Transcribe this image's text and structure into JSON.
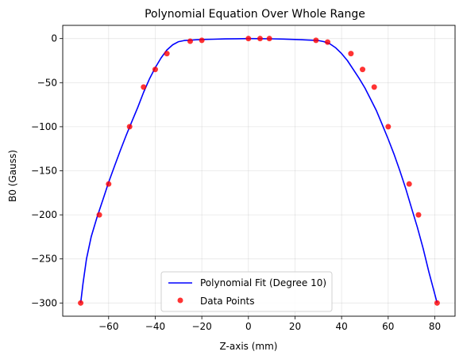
{
  "chart_data": {
    "type": "scatter",
    "title": "Polynomial Equation Over Whole Range",
    "xlabel": "Z-axis (mm)",
    "ylabel": "B0 (Gauss)",
    "xlim": [
      -79.7,
      88.7
    ],
    "ylim": [
      -315,
      15
    ],
    "xticks": [
      -60,
      -40,
      -20,
      0,
      20,
      40,
      60,
      80
    ],
    "yticks": [
      0,
      -50,
      -100,
      -150,
      -200,
      -250,
      -300
    ],
    "xtick_labels": [
      "−60",
      "−40",
      "−20",
      "0",
      "20",
      "40",
      "60",
      "80"
    ],
    "ytick_labels": [
      "0",
      "−50",
      "−100",
      "−150",
      "−200",
      "−250",
      "−300"
    ],
    "grid": true,
    "legend_position": "bottom-center",
    "series": [
      {
        "name": "Polynomial Fit (Degree 10)",
        "kind": "line",
        "color": "#0000ff",
        "x": [
          -72.0,
          -71.0,
          -69.5,
          -67.5,
          -65.0,
          -62.5,
          -60.0,
          -57.5,
          -55.0,
          -52.5,
          -50.0,
          -47.5,
          -45.0,
          -42.5,
          -40.0,
          -37.5,
          -35.0,
          -32.5,
          -30.0,
          -27.5,
          -25.0,
          -22.5,
          -20.0,
          -15.0,
          -10.0,
          -5.0,
          0.0,
          5.0,
          10.0,
          15.0,
          20.0,
          25.0,
          30.0,
          32.5,
          35.0,
          37.5,
          40.0,
          42.5,
          45.0,
          47.5,
          50.0,
          52.5,
          55.0,
          57.5,
          60.0,
          62.5,
          65.0,
          67.5,
          70.0,
          72.5,
          75.0,
          77.5,
          79.5,
          81.0
        ],
        "y": [
          -300,
          -278,
          -250,
          -225,
          -203,
          -183,
          -163,
          -145,
          -127,
          -110,
          -94,
          -78,
          -61,
          -46,
          -33,
          -22,
          -13,
          -7,
          -3.5,
          -2.2,
          -1.8,
          -1.4,
          -1.0,
          -0.7,
          -0.4,
          -0.2,
          0.0,
          -0.1,
          -0.3,
          -0.6,
          -1.0,
          -1.5,
          -2.2,
          -3.5,
          -6.0,
          -10.5,
          -17.0,
          -25.0,
          -35.0,
          -45.0,
          -56.0,
          -69.0,
          -82.0,
          -98.0,
          -114.0,
          -131.0,
          -150.0,
          -170.0,
          -192.0,
          -214.0,
          -238.0,
          -265.0,
          -285.0,
          -300.0
        ]
      },
      {
        "name": "Data Points",
        "kind": "scatter",
        "color": "#ff0000",
        "x": [
          -72,
          -64,
          -60,
          -51,
          -45,
          -40,
          -35,
          -25,
          -20,
          0,
          5,
          9,
          29,
          34,
          44,
          49,
          54,
          60,
          69,
          73,
          81
        ],
        "y": [
          -300,
          -200,
          -165,
          -100,
          -55,
          -35,
          -17,
          -3,
          -2,
          0,
          0,
          0,
          -2,
          -4,
          -17,
          -35,
          -55,
          -100,
          -165,
          -200,
          -300
        ]
      }
    ]
  }
}
